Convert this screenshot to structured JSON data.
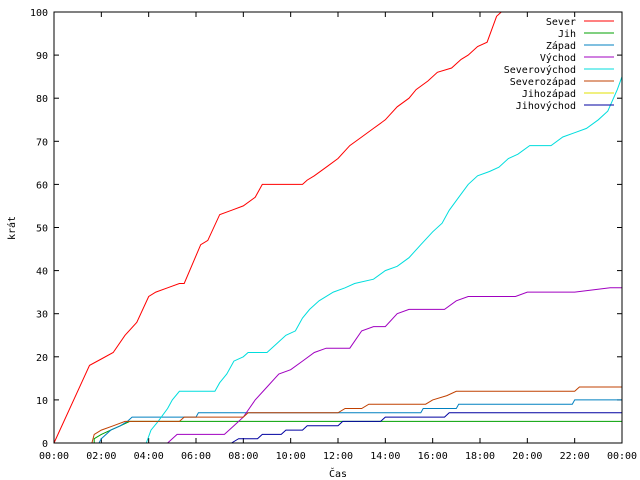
{
  "chart_data": {
    "type": "line",
    "xlabel": "Čas",
    "ylabel": "krát",
    "xlim": [
      0,
      24
    ],
    "ylim": [
      0,
      100
    ],
    "x_ticks": [
      {
        "v": 0,
        "label": "00:00"
      },
      {
        "v": 2,
        "label": "02:00"
      },
      {
        "v": 4,
        "label": "04:00"
      },
      {
        "v": 6,
        "label": "06:00"
      },
      {
        "v": 8,
        "label": "08:00"
      },
      {
        "v": 10,
        "label": "10:00"
      },
      {
        "v": 12,
        "label": "12:00"
      },
      {
        "v": 14,
        "label": "14:00"
      },
      {
        "v": 16,
        "label": "16:00"
      },
      {
        "v": 18,
        "label": "18:00"
      },
      {
        "v": 20,
        "label": "20:00"
      },
      {
        "v": 22,
        "label": "22:00"
      },
      {
        "v": 24,
        "label": "00:00"
      }
    ],
    "y_ticks": [
      0,
      10,
      20,
      30,
      40,
      50,
      60,
      70,
      80,
      90,
      100
    ],
    "grid": false,
    "legend_position": "top-right",
    "series": [
      {
        "name": "Sever",
        "color": "#ff0000",
        "points": [
          [
            0,
            0
          ],
          [
            1.5,
            18
          ],
          [
            2.0,
            19.5
          ],
          [
            2.5,
            21
          ],
          [
            3.0,
            25
          ],
          [
            3.5,
            28
          ],
          [
            4.0,
            34
          ],
          [
            4.3,
            35
          ],
          [
            4.8,
            36
          ],
          [
            5.3,
            37
          ],
          [
            5.5,
            37
          ],
          [
            6.2,
            46
          ],
          [
            6.5,
            47
          ],
          [
            7.0,
            53
          ],
          [
            7.5,
            54
          ],
          [
            8.0,
            55
          ],
          [
            8.5,
            57
          ],
          [
            8.8,
            60
          ],
          [
            10.5,
            60
          ],
          [
            10.7,
            61
          ],
          [
            11.0,
            62
          ],
          [
            11.5,
            64
          ],
          [
            12.0,
            66
          ],
          [
            12.5,
            69
          ],
          [
            13.0,
            71
          ],
          [
            13.5,
            73
          ],
          [
            14.0,
            75
          ],
          [
            14.5,
            78
          ],
          [
            15.0,
            80
          ],
          [
            15.3,
            82
          ],
          [
            15.8,
            84
          ],
          [
            16.2,
            86
          ],
          [
            16.8,
            87
          ],
          [
            17.2,
            89
          ],
          [
            17.5,
            90
          ],
          [
            17.9,
            92
          ],
          [
            18.3,
            93
          ],
          [
            18.7,
            99
          ],
          [
            18.9,
            100
          ]
        ]
      },
      {
        "name": "Jih",
        "color": "#00a000",
        "points": [
          [
            1.7,
            0
          ],
          [
            1.7,
            1
          ],
          [
            2.0,
            2
          ],
          [
            2.4,
            3
          ],
          [
            2.8,
            4
          ],
          [
            3.2,
            5
          ],
          [
            24,
            5
          ]
        ]
      },
      {
        "name": "Západ",
        "color": "#0080c0",
        "points": [
          [
            1.9,
            0
          ],
          [
            2.0,
            1
          ],
          [
            2.4,
            3
          ],
          [
            2.8,
            4
          ],
          [
            3.1,
            5
          ],
          [
            3.3,
            6
          ],
          [
            6.0,
            6
          ],
          [
            6.1,
            7
          ],
          [
            15.5,
            7
          ],
          [
            15.6,
            8
          ],
          [
            17.0,
            8
          ],
          [
            17.1,
            9
          ],
          [
            21.9,
            9
          ],
          [
            22.0,
            10
          ],
          [
            24,
            10
          ]
        ]
      },
      {
        "name": "Východ",
        "color": "#a000c0",
        "points": [
          [
            4.8,
            0
          ],
          [
            5.0,
            1
          ],
          [
            5.2,
            2
          ],
          [
            7.2,
            2
          ],
          [
            7.6,
            4
          ],
          [
            8.0,
            6
          ],
          [
            8.5,
            10
          ],
          [
            9.0,
            13
          ],
          [
            9.5,
            16
          ],
          [
            10.0,
            17
          ],
          [
            10.5,
            19
          ],
          [
            11.0,
            21
          ],
          [
            11.5,
            22
          ],
          [
            12.5,
            22
          ],
          [
            13.0,
            26
          ],
          [
            13.5,
            27
          ],
          [
            14.0,
            27
          ],
          [
            14.5,
            30
          ],
          [
            15.0,
            31
          ],
          [
            16.0,
            31
          ],
          [
            16.5,
            31
          ],
          [
            17.0,
            33
          ],
          [
            17.5,
            34
          ],
          [
            19.0,
            34
          ],
          [
            19.5,
            34
          ],
          [
            20.0,
            35
          ],
          [
            21.0,
            35
          ],
          [
            22.0,
            35
          ],
          [
            23.5,
            36
          ],
          [
            24,
            36
          ]
        ]
      },
      {
        "name": "Severovýchod",
        "color": "#00dddd",
        "points": [
          [
            3.9,
            0
          ],
          [
            4.1,
            3
          ],
          [
            4.4,
            5
          ],
          [
            4.8,
            8
          ],
          [
            5.0,
            10
          ],
          [
            5.3,
            12
          ],
          [
            6.8,
            12
          ],
          [
            7.0,
            14
          ],
          [
            7.3,
            16
          ],
          [
            7.6,
            19
          ],
          [
            8.0,
            20
          ],
          [
            8.2,
            21
          ],
          [
            9.0,
            21
          ],
          [
            9.4,
            23
          ],
          [
            9.8,
            25
          ],
          [
            10.2,
            26
          ],
          [
            10.5,
            29
          ],
          [
            10.8,
            31
          ],
          [
            11.2,
            33
          ],
          [
            11.8,
            35
          ],
          [
            12.3,
            36
          ],
          [
            12.7,
            37
          ],
          [
            13.5,
            38
          ],
          [
            14.0,
            40
          ],
          [
            14.5,
            41
          ],
          [
            15.0,
            43
          ],
          [
            15.5,
            46
          ],
          [
            16.0,
            49
          ],
          [
            16.4,
            51
          ],
          [
            16.7,
            54
          ],
          [
            17.1,
            57
          ],
          [
            17.5,
            60
          ],
          [
            17.9,
            62
          ],
          [
            18.4,
            63
          ],
          [
            18.8,
            64
          ],
          [
            19.2,
            66
          ],
          [
            19.6,
            67
          ],
          [
            20.1,
            69
          ],
          [
            21.0,
            69
          ],
          [
            21.5,
            71
          ],
          [
            22.0,
            72
          ],
          [
            22.5,
            73
          ],
          [
            23.0,
            75
          ],
          [
            23.4,
            77
          ],
          [
            23.8,
            82
          ],
          [
            24,
            85
          ]
        ]
      },
      {
        "name": "Severozápad",
        "color": "#c04000",
        "points": [
          [
            1.6,
            0
          ],
          [
            1.7,
            2
          ],
          [
            2.0,
            3
          ],
          [
            2.5,
            4
          ],
          [
            3.0,
            5
          ],
          [
            3.5,
            5
          ],
          [
            5.3,
            5
          ],
          [
            5.5,
            6
          ],
          [
            8.0,
            6
          ],
          [
            8.2,
            7
          ],
          [
            12.0,
            7
          ],
          [
            12.3,
            8
          ],
          [
            13.0,
            8
          ],
          [
            13.3,
            9
          ],
          [
            15.7,
            9
          ],
          [
            16.0,
            10
          ],
          [
            16.6,
            11
          ],
          [
            17.0,
            12
          ],
          [
            22.0,
            12
          ],
          [
            22.2,
            13
          ],
          [
            24,
            13
          ]
        ]
      },
      {
        "name": "Jihozápad",
        "color": "#e0e000",
        "points": []
      },
      {
        "name": "Jihovýchod",
        "color": "#0000a0",
        "points": [
          [
            7.5,
            0
          ],
          [
            7.8,
            1
          ],
          [
            8.6,
            1
          ],
          [
            8.8,
            2
          ],
          [
            9.6,
            2
          ],
          [
            9.8,
            3
          ],
          [
            10.5,
            3
          ],
          [
            10.7,
            4
          ],
          [
            12.0,
            4
          ],
          [
            12.2,
            5
          ],
          [
            13.8,
            5
          ],
          [
            14.0,
            6
          ],
          [
            16.5,
            6
          ],
          [
            16.7,
            7
          ],
          [
            24,
            7
          ]
        ]
      }
    ]
  }
}
